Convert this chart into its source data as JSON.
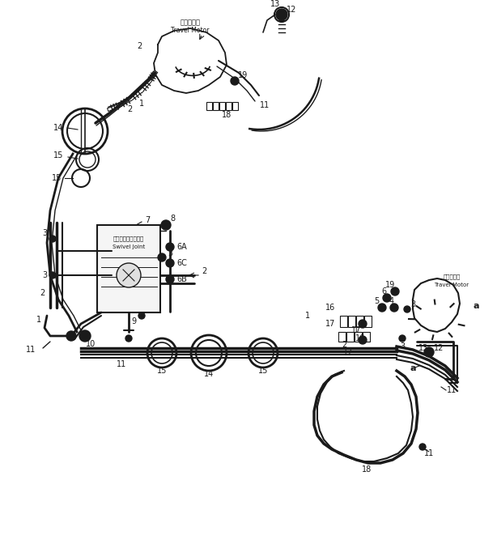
{
  "bg_color": "#ffffff",
  "line_color": "#1a1a1a",
  "fig_width": 6.14,
  "fig_height": 6.72,
  "dpi": 100,
  "labels": {
    "top_motor_jp": "走行モータ",
    "top_motor_en": "Travel Motor",
    "swivel_jp": "スイベルジョイント",
    "swivel_en": "Swivel Joint",
    "right_motor_jp": "走行モータ",
    "right_motor_en": "Travel Motor"
  }
}
